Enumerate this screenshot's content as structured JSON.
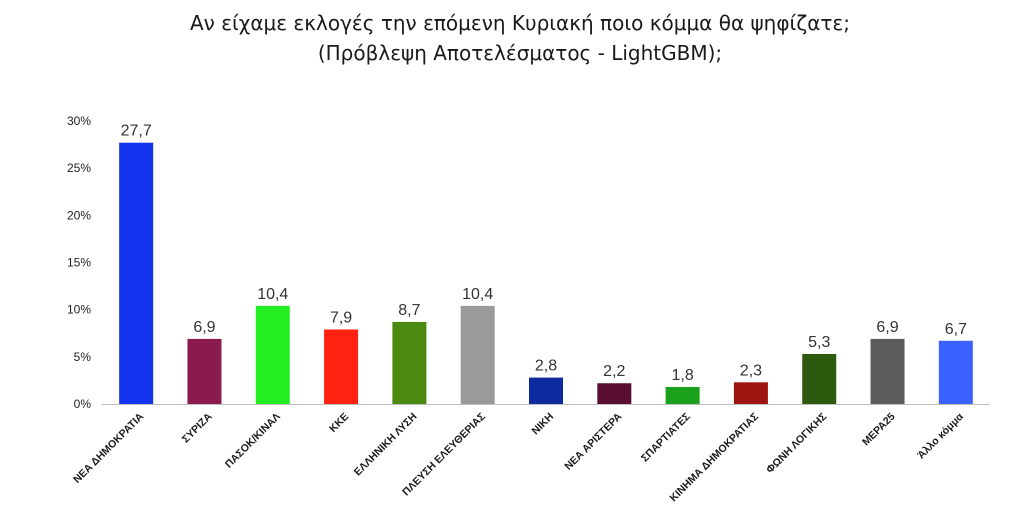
{
  "chart_data": {
    "type": "bar",
    "title": "Αν είχαμε εκλογές την επόμενη Κυριακή ποιο κόμμα θα ψηφίζατε;",
    "subtitle": "(Πρόβλεψη Αποτελέσματος - LightGBM);",
    "categories": [
      "ΝΕΑ ΔΗΜΟΚΡΑΤΙΑ",
      "ΣΥΡΙΖΑ",
      "ΠΑΣΟΚ/ΚΙΝΑΛ",
      "ΚΚΕ",
      "ΕΛΛΗΝΙΚΗ ΛΥΣΗ",
      "ΠΛΕΥΣΗ ΕΛΕΥΘΕΡΙΑΣ",
      "ΝΙΚΗ",
      "ΝΕΑ ΑΡΙΣΤΕΡΑ",
      "ΣΠΑΡΤΙΑΤΕΣ",
      "ΚΙΝΗΜΑ ΔΗΜΟΚΡΑΤΙΑΣ",
      "ΦΩΝΗ ΛΟΓΙΚΗΣ",
      "ΜΕΡΑ25",
      "Άλλο κόμμα"
    ],
    "values": [
      27.7,
      6.9,
      10.4,
      7.9,
      8.7,
      10.4,
      2.8,
      2.2,
      1.8,
      2.3,
      5.3,
      6.9,
      6.7
    ],
    "value_labels": [
      "27,7",
      "6,9",
      "10,4",
      "7,9",
      "8,7",
      "10,4",
      "2,8",
      "2,2",
      "1,8",
      "2,3",
      "5,3",
      "6,9",
      "6,7"
    ],
    "colors": [
      "#1433ee",
      "#8b1a4f",
      "#22ee22",
      "#ff2211",
      "#4a8a10",
      "#9a9a9a",
      "#0d2a9e",
      "#5a0f30",
      "#1aa01a",
      "#9e1410",
      "#2e5a10",
      "#5c5c5c",
      "#3b62ff"
    ],
    "yticks": [
      "0%",
      "5%",
      "10%",
      "15%",
      "20%",
      "25%",
      "30%"
    ],
    "ylim": [
      0,
      30
    ],
    "xlabel": "",
    "ylabel": "",
    "grid": false,
    "legend": "none"
  }
}
